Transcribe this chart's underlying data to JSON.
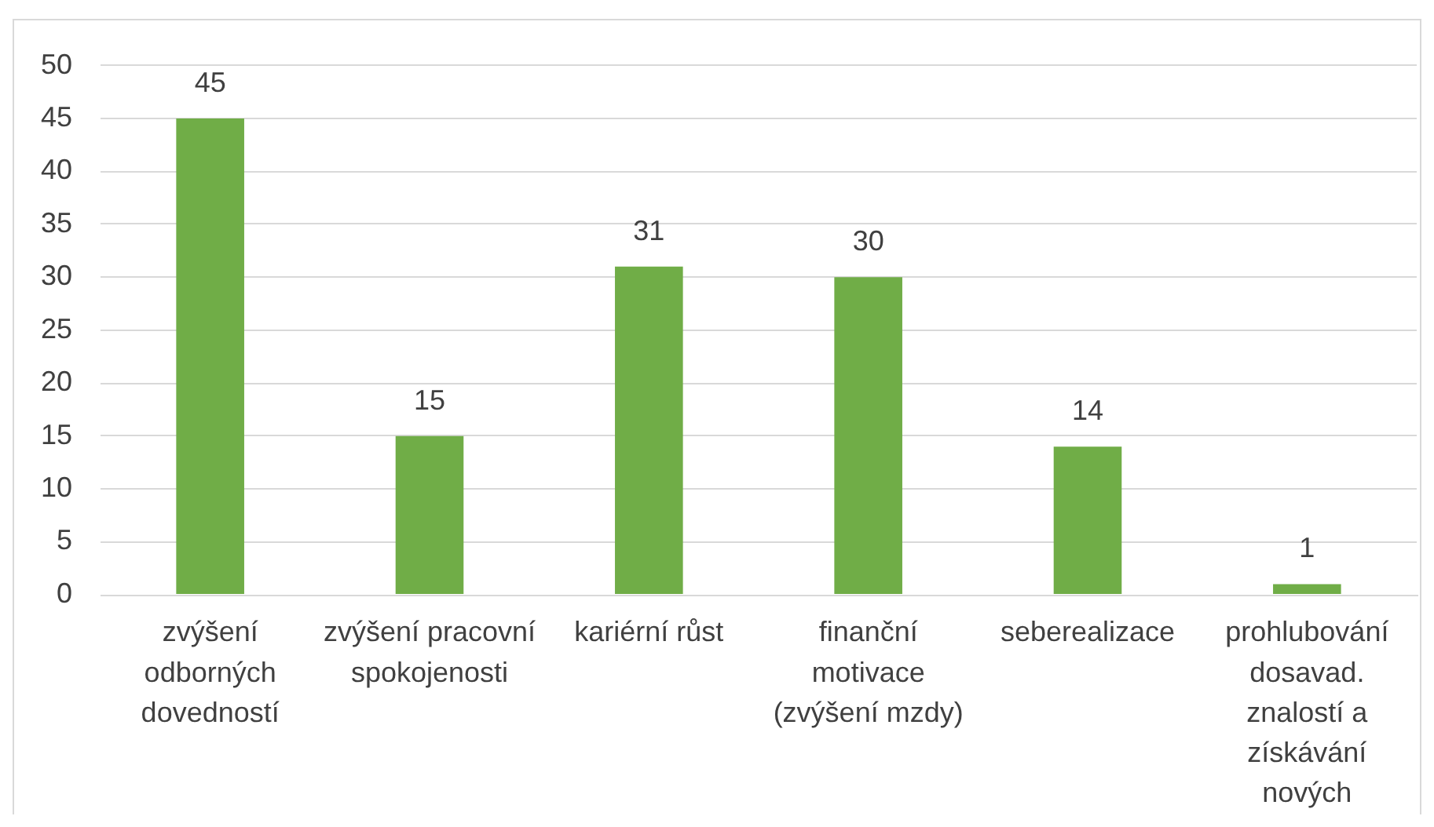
{
  "chart_data": {
    "type": "bar",
    "categories": [
      "zvýšení odborných dovedností",
      "zvýšení pracovní spokojenosti",
      "kariérní růst",
      "finanční motivace (zvýšení mzdy)",
      "seberealizace",
      "prohlubování dosavad. znalostí a získávání nových"
    ],
    "values": [
      45,
      15,
      31,
      30,
      14,
      1
    ],
    "color": "#70ad47",
    "ylim": [
      0,
      50
    ],
    "yticks": [
      0,
      5,
      10,
      15,
      20,
      25,
      30,
      35,
      40,
      45,
      50
    ],
    "grid": "y",
    "data_labels": true
  }
}
